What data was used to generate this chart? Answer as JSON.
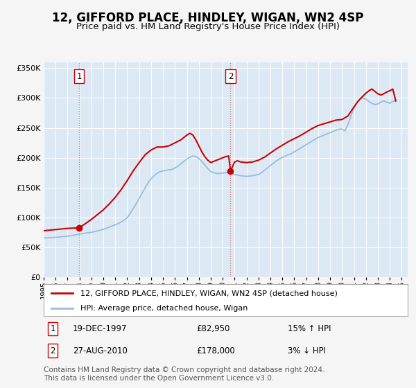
{
  "title": "12, GIFFORD PLACE, HINDLEY, WIGAN, WN2 4SP",
  "subtitle": "Price paid vs. HM Land Registry's House Price Index (HPI)",
  "title_fontsize": 12,
  "subtitle_fontsize": 9.5,
  "ylim": [
    0,
    360000
  ],
  "yticks": [
    0,
    50000,
    100000,
    150000,
    200000,
    250000,
    300000,
    350000
  ],
  "ytick_labels": [
    "£0",
    "£50K",
    "£100K",
    "£150K",
    "£200K",
    "£250K",
    "£300K",
    "£350K"
  ],
  "xlim_start": 1995.0,
  "xlim_end": 2025.5,
  "fig_bg_color": "#f5f5f5",
  "plot_bg_color": "#dce9f5",
  "grid_color": "#ffffff",
  "legend_label_red": "12, GIFFORD PLACE, HINDLEY, WIGAN, WN2 4SP (detached house)",
  "legend_label_blue": "HPI: Average price, detached house, Wigan",
  "red_color": "#cc0000",
  "blue_color": "#99bbdd",
  "transaction1": {
    "label": "1",
    "date_str": "19-DEC-1997",
    "price": 82950,
    "year": 1997.96,
    "hpi_pct": "15%",
    "hpi_dir": "↑"
  },
  "transaction2": {
    "label": "2",
    "date_str": "27-AUG-2010",
    "price": 178000,
    "year": 2010.65,
    "hpi_pct": "3%",
    "hpi_dir": "↓"
  },
  "footer": "Contains HM Land Registry data © Crown copyright and database right 2024.\nThis data is licensed under the Open Government Licence v3.0.",
  "footer_fontsize": 7.5,
  "hpi_data_years": [
    1995.0,
    1995.25,
    1995.5,
    1995.75,
    1996.0,
    1996.25,
    1996.5,
    1996.75,
    1997.0,
    1997.25,
    1997.5,
    1997.75,
    1998.0,
    1998.25,
    1998.5,
    1998.75,
    1999.0,
    1999.25,
    1999.5,
    1999.75,
    2000.0,
    2000.25,
    2000.5,
    2000.75,
    2001.0,
    2001.25,
    2001.5,
    2001.75,
    2002.0,
    2002.25,
    2002.5,
    2002.75,
    2003.0,
    2003.25,
    2003.5,
    2003.75,
    2004.0,
    2004.25,
    2004.5,
    2004.75,
    2005.0,
    2005.25,
    2005.5,
    2005.75,
    2006.0,
    2006.25,
    2006.5,
    2006.75,
    2007.0,
    2007.25,
    2007.5,
    2007.75,
    2008.0,
    2008.25,
    2008.5,
    2008.75,
    2009.0,
    2009.25,
    2009.5,
    2009.75,
    2010.0,
    2010.25,
    2010.5,
    2010.75,
    2011.0,
    2011.25,
    2011.5,
    2011.75,
    2012.0,
    2012.25,
    2012.5,
    2012.75,
    2013.0,
    2013.25,
    2013.5,
    2013.75,
    2014.0,
    2014.25,
    2014.5,
    2014.75,
    2015.0,
    2015.25,
    2015.5,
    2015.75,
    2016.0,
    2016.25,
    2016.5,
    2016.75,
    2017.0,
    2017.25,
    2017.5,
    2017.75,
    2018.0,
    2018.25,
    2018.5,
    2018.75,
    2019.0,
    2019.25,
    2019.5,
    2019.75,
    2020.0,
    2020.25,
    2020.5,
    2020.75,
    2021.0,
    2021.25,
    2021.5,
    2021.75,
    2022.0,
    2022.25,
    2022.5,
    2022.75,
    2023.0,
    2023.25,
    2023.5,
    2023.75,
    2024.0,
    2024.25,
    2024.5
  ],
  "hpi_values": [
    66000,
    66200,
    66400,
    66600,
    67000,
    67500,
    68000,
    68500,
    69000,
    69800,
    70500,
    71500,
    72500,
    73200,
    74000,
    74800,
    75500,
    76500,
    77800,
    79000,
    80500,
    82000,
    84000,
    86000,
    88000,
    90000,
    93000,
    96000,
    100000,
    107000,
    115000,
    123000,
    132000,
    141000,
    150000,
    158000,
    165000,
    170000,
    174000,
    177000,
    178000,
    179000,
    180000,
    180500,
    183000,
    186000,
    190000,
    194000,
    198000,
    201000,
    203000,
    202000,
    199000,
    194000,
    188000,
    182000,
    177000,
    175000,
    174000,
    174000,
    174500,
    175000,
    176000,
    174000,
    172000,
    171000,
    170000,
    169500,
    169000,
    169500,
    170000,
    171000,
    172000,
    175000,
    179000,
    183000,
    187000,
    191000,
    195000,
    198000,
    201000,
    203000,
    205000,
    207000,
    210000,
    213000,
    216000,
    219000,
    222000,
    225000,
    228000,
    231000,
    234000,
    236000,
    238000,
    240000,
    242000,
    244000,
    246000,
    248000,
    248000,
    245000,
    256000,
    270000,
    283000,
    293000,
    298000,
    300000,
    298000,
    294000,
    291000,
    289000,
    290000,
    293000,
    295000,
    293000,
    291000,
    294000,
    297000
  ],
  "price_data_years": [
    1995.0,
    1995.5,
    1996.0,
    1996.5,
    1997.0,
    1997.5,
    1997.96,
    1998.5,
    1999.0,
    1999.5,
    2000.0,
    2000.5,
    2001.0,
    2001.5,
    2002.0,
    2002.5,
    2003.0,
    2003.5,
    2004.0,
    2004.5,
    2005.0,
    2005.5,
    2006.0,
    2006.5,
    2007.0,
    2007.25,
    2007.5,
    2007.75,
    2008.0,
    2008.25,
    2008.5,
    2008.75,
    2009.0,
    2009.25,
    2009.5,
    2010.0,
    2010.25,
    2010.5,
    2010.65,
    2011.0,
    2011.25,
    2011.5,
    2012.0,
    2012.5,
    2013.0,
    2013.5,
    2014.0,
    2014.5,
    2015.0,
    2015.5,
    2016.0,
    2016.5,
    2017.0,
    2017.5,
    2018.0,
    2018.5,
    2019.0,
    2019.5,
    2020.0,
    2020.5,
    2021.0,
    2021.25,
    2021.5,
    2021.75,
    2022.0,
    2022.25,
    2022.5,
    2022.75,
    2023.0,
    2023.25,
    2023.5,
    2023.75,
    2024.0,
    2024.25,
    2024.5
  ],
  "price_values": [
    78000,
    79000,
    80000,
    81000,
    82000,
    82500,
    82950,
    90000,
    97000,
    105000,
    113000,
    123000,
    134000,
    147000,
    162000,
    178000,
    192000,
    205000,
    213000,
    218000,
    218000,
    220000,
    225000,
    230000,
    238000,
    241000,
    238000,
    230000,
    220000,
    210000,
    202000,
    196000,
    192000,
    194000,
    196000,
    200000,
    202000,
    203000,
    178000,
    193000,
    195000,
    193000,
    192000,
    193000,
    196000,
    201000,
    208000,
    215000,
    221000,
    227000,
    232000,
    237000,
    243000,
    249000,
    254000,
    257000,
    260000,
    263000,
    264000,
    270000,
    285000,
    292000,
    298000,
    303000,
    308000,
    312000,
    315000,
    311000,
    307000,
    305000,
    307000,
    310000,
    312000,
    315000,
    295000
  ]
}
